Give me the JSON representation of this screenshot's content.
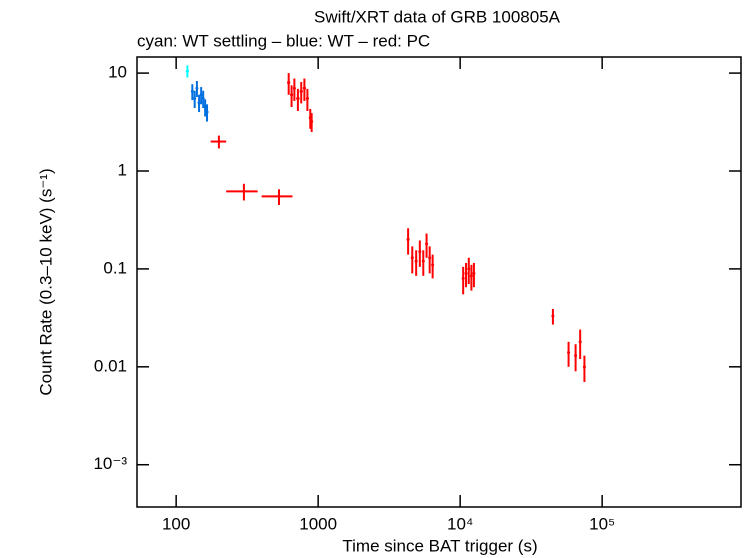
{
  "chart_data": {
    "type": "scatter",
    "title": "Swift/XRT data of GRB 100805A",
    "subtitle": "cyan: WT settling – blue: WT – red: PC",
    "x_label": "Time since BAT trigger (s)",
    "y_label": "Count Rate (0.3–10 keV) (s⁻¹)",
    "log_x": true,
    "log_y": true,
    "xlim": [
      53,
      950000
    ],
    "ylim": [
      0.00037,
      14.6
    ],
    "xticks": [
      100,
      1000,
      {
        "value": 10000,
        "label": "10⁴"
      },
      {
        "value": 100000,
        "label": "10⁵"
      }
    ],
    "yticks": [
      {
        "value": 0.001,
        "label": "10⁻³"
      },
      0.01,
      0.1,
      1,
      10
    ],
    "series": [
      {
        "name": "WT settling",
        "color": "#00ffff",
        "x": [
          120
        ],
        "values": [
          10.5
        ],
        "xerr": [
          3
        ],
        "yerr": [
          1.5
        ]
      },
      {
        "name": "WT",
        "color": "#0070e0",
        "x": [
          130,
          135,
          140,
          145,
          150,
          155,
          160,
          165
        ],
        "values": [
          6.5,
          5.5,
          7,
          5,
          6,
          5.5,
          4.5,
          4
        ],
        "xerr": [
          2,
          2,
          2,
          2,
          2,
          2,
          2,
          2
        ],
        "yerr": [
          1.2,
          1.1,
          1.3,
          1,
          1.2,
          1.1,
          0.9,
          0.8
        ]
      },
      {
        "name": "PC",
        "color": "#ff0000",
        "x": [
          200,
          300,
          530,
          620,
          650,
          680,
          720,
          760,
          800,
          840,
          880,
          900,
          4300,
          4600,
          4900,
          5200,
          5500,
          5800,
          6100,
          6400,
          10500,
          11000,
          11500,
          12000,
          12500,
          45000,
          58000,
          65000,
          70000,
          75000
        ],
        "values": [
          2.0,
          0.62,
          0.55,
          8,
          6,
          7,
          5.5,
          6.5,
          7,
          5.5,
          3.5,
          3.2,
          0.2,
          0.13,
          0.12,
          0.15,
          0.12,
          0.18,
          0.13,
          0.11,
          0.08,
          0.09,
          0.1,
          0.085,
          0.09,
          0.033,
          0.014,
          0.013,
          0.018,
          0.01
        ],
        "xerr": [
          25,
          75,
          130,
          15,
          15,
          15,
          20,
          20,
          20,
          20,
          15,
          15,
          100,
          100,
          100,
          100,
          100,
          100,
          100,
          100,
          200,
          200,
          200,
          200,
          200,
          800,
          1000,
          1000,
          1000,
          1000
        ],
        "yerr": [
          0.3,
          0.12,
          0.1,
          2,
          1.5,
          1.8,
          1.4,
          1.6,
          1.8,
          1.4,
          0.8,
          0.7,
          0.06,
          0.04,
          0.035,
          0.045,
          0.035,
          0.05,
          0.04,
          0.03,
          0.025,
          0.025,
          0.03,
          0.025,
          0.025,
          0.006,
          0.004,
          0.004,
          0.006,
          0.003
        ]
      }
    ]
  }
}
